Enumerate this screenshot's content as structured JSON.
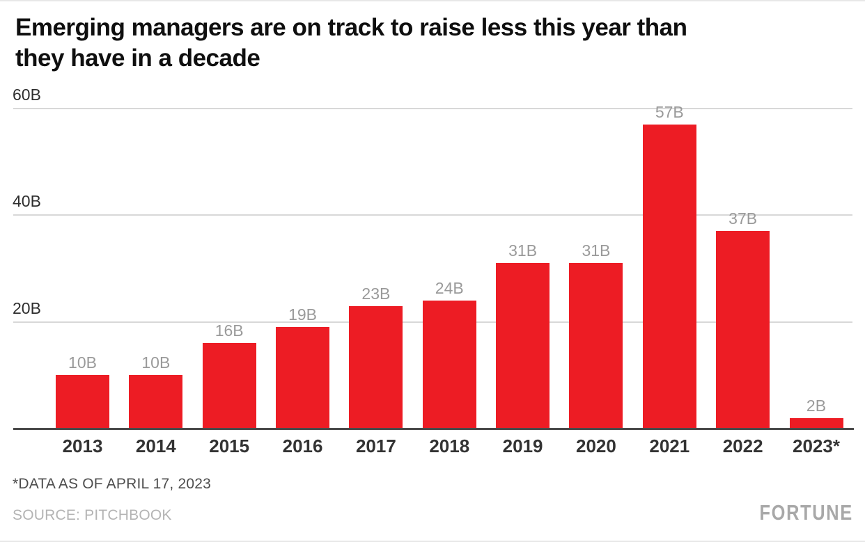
{
  "header": {
    "title": "Emerging managers are on track to raise less this year than they have in a decade",
    "title_lines": [
      "Emerging managers are on track to raise less this year than",
      "they have in a decade"
    ]
  },
  "chart_data": {
    "type": "bar",
    "title": "Emerging managers are on track to raise less this year than they have in a decade",
    "categories": [
      "2013",
      "2014",
      "2015",
      "2016",
      "2017",
      "2018",
      "2019",
      "2020",
      "2021",
      "2022",
      "2023*"
    ],
    "values": [
      10,
      10,
      16,
      19,
      23,
      24,
      31,
      31,
      57,
      37,
      2
    ],
    "bar_labels": [
      "10B",
      "10B",
      "16B",
      "19B",
      "23B",
      "24B",
      "31B",
      "31B",
      "57B",
      "37B",
      "2B"
    ],
    "xlabel": "",
    "ylabel": "",
    "ylim": [
      0,
      60
    ],
    "y_ticks": [
      {
        "value": 20,
        "label": "20B"
      },
      {
        "value": 40,
        "label": "40B"
      },
      {
        "value": 60,
        "label": "60B"
      }
    ],
    "grid": true,
    "legend": false
  },
  "footer": {
    "footnote": "*DATA AS OF APRIL 17, 2023",
    "source": "SOURCE: PITCHBOOK",
    "brand": "FORTUNE"
  },
  "colors": {
    "bar": "#ed1c24",
    "gridline": "#d8d8d8",
    "axis": "#4a4a4a",
    "tick_label": "#2e2e2e",
    "year_label": "#333333",
    "value_label": "#9a9a9a",
    "title": "#0f0f0f",
    "footnote": "#4d4d4d",
    "source": "#b4b4b4",
    "brand": "#a8a8a8"
  }
}
